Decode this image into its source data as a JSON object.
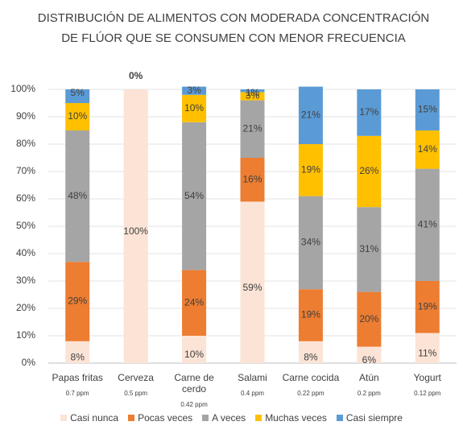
{
  "chart_data": {
    "type": "stacked_bar",
    "title": [
      "DISTRIBUCIÓN DE ALIMENTOS CON MODERADA CONCENTRACIÓN",
      "DE FLÚOR QUE SE CONSUMEN CON MENOR FRECUENCIA"
    ],
    "categories": [
      "Papas fritas",
      "Cerveza",
      "Carne de cerdo",
      "Salami",
      "Carne cocida",
      "Atún",
      "Yogurt"
    ],
    "category_notes": [
      "0.7 ppm",
      "0.5 ppm",
      "0.42 ppm",
      "0.4 ppm",
      "0.22 ppm",
      "0.2 ppm",
      "0.12 ppm"
    ],
    "series": [
      {
        "name": "Casi nunca",
        "color": "#fbe3d6",
        "values": [
          8,
          100,
          10,
          59,
          8,
          6,
          11
        ],
        "value_labels": [
          "8%",
          "100%",
          "10%",
          "59%",
          "8%",
          "6%",
          "11%"
        ]
      },
      {
        "name": "Pocas veces",
        "color": "#ed7d31",
        "values": [
          29,
          0,
          24,
          16,
          19,
          20,
          19
        ],
        "value_labels": [
          "29%",
          null,
          "24%",
          "16%",
          "19%",
          "20%",
          "19%"
        ]
      },
      {
        "name": "A veces",
        "color": "#a5a5a5",
        "values": [
          48,
          0,
          54,
          21,
          34,
          31,
          41
        ],
        "value_labels": [
          "48%",
          null,
          "54%",
          "21%",
          "34%",
          "31%",
          "41%"
        ]
      },
      {
        "name": "Muchas veces",
        "color": "#ffc000",
        "values": [
          10,
          0,
          10,
          3,
          19,
          26,
          14
        ],
        "value_labels": [
          "10%",
          null,
          "10%",
          "3%",
          "19%",
          "26%",
          "14%"
        ]
      },
      {
        "name": "Casi siempre",
        "color": "#5b9bd5",
        "values": [
          5,
          0,
          3,
          1,
          21,
          17,
          15
        ],
        "value_labels": [
          "5%",
          "0%",
          "3%",
          "1%",
          "21%",
          "17%",
          "15%"
        ]
      }
    ],
    "ylim": [
      0,
      100
    ],
    "yticks": [
      {
        "value": 0,
        "label": "0%"
      },
      {
        "value": 10,
        "label": "10%"
      },
      {
        "value": 20,
        "label": "20%"
      },
      {
        "value": 30,
        "label": "30%"
      },
      {
        "value": 40,
        "label": "40%"
      },
      {
        "value": 50,
        "label": "50%"
      },
      {
        "value": 60,
        "label": "60%"
      },
      {
        "value": 70,
        "label": "70%"
      },
      {
        "value": 80,
        "label": "80%"
      },
      {
        "value": 90,
        "label": "90%"
      },
      {
        "value": 100,
        "label": "100%"
      }
    ],
    "legend": "bottom"
  }
}
